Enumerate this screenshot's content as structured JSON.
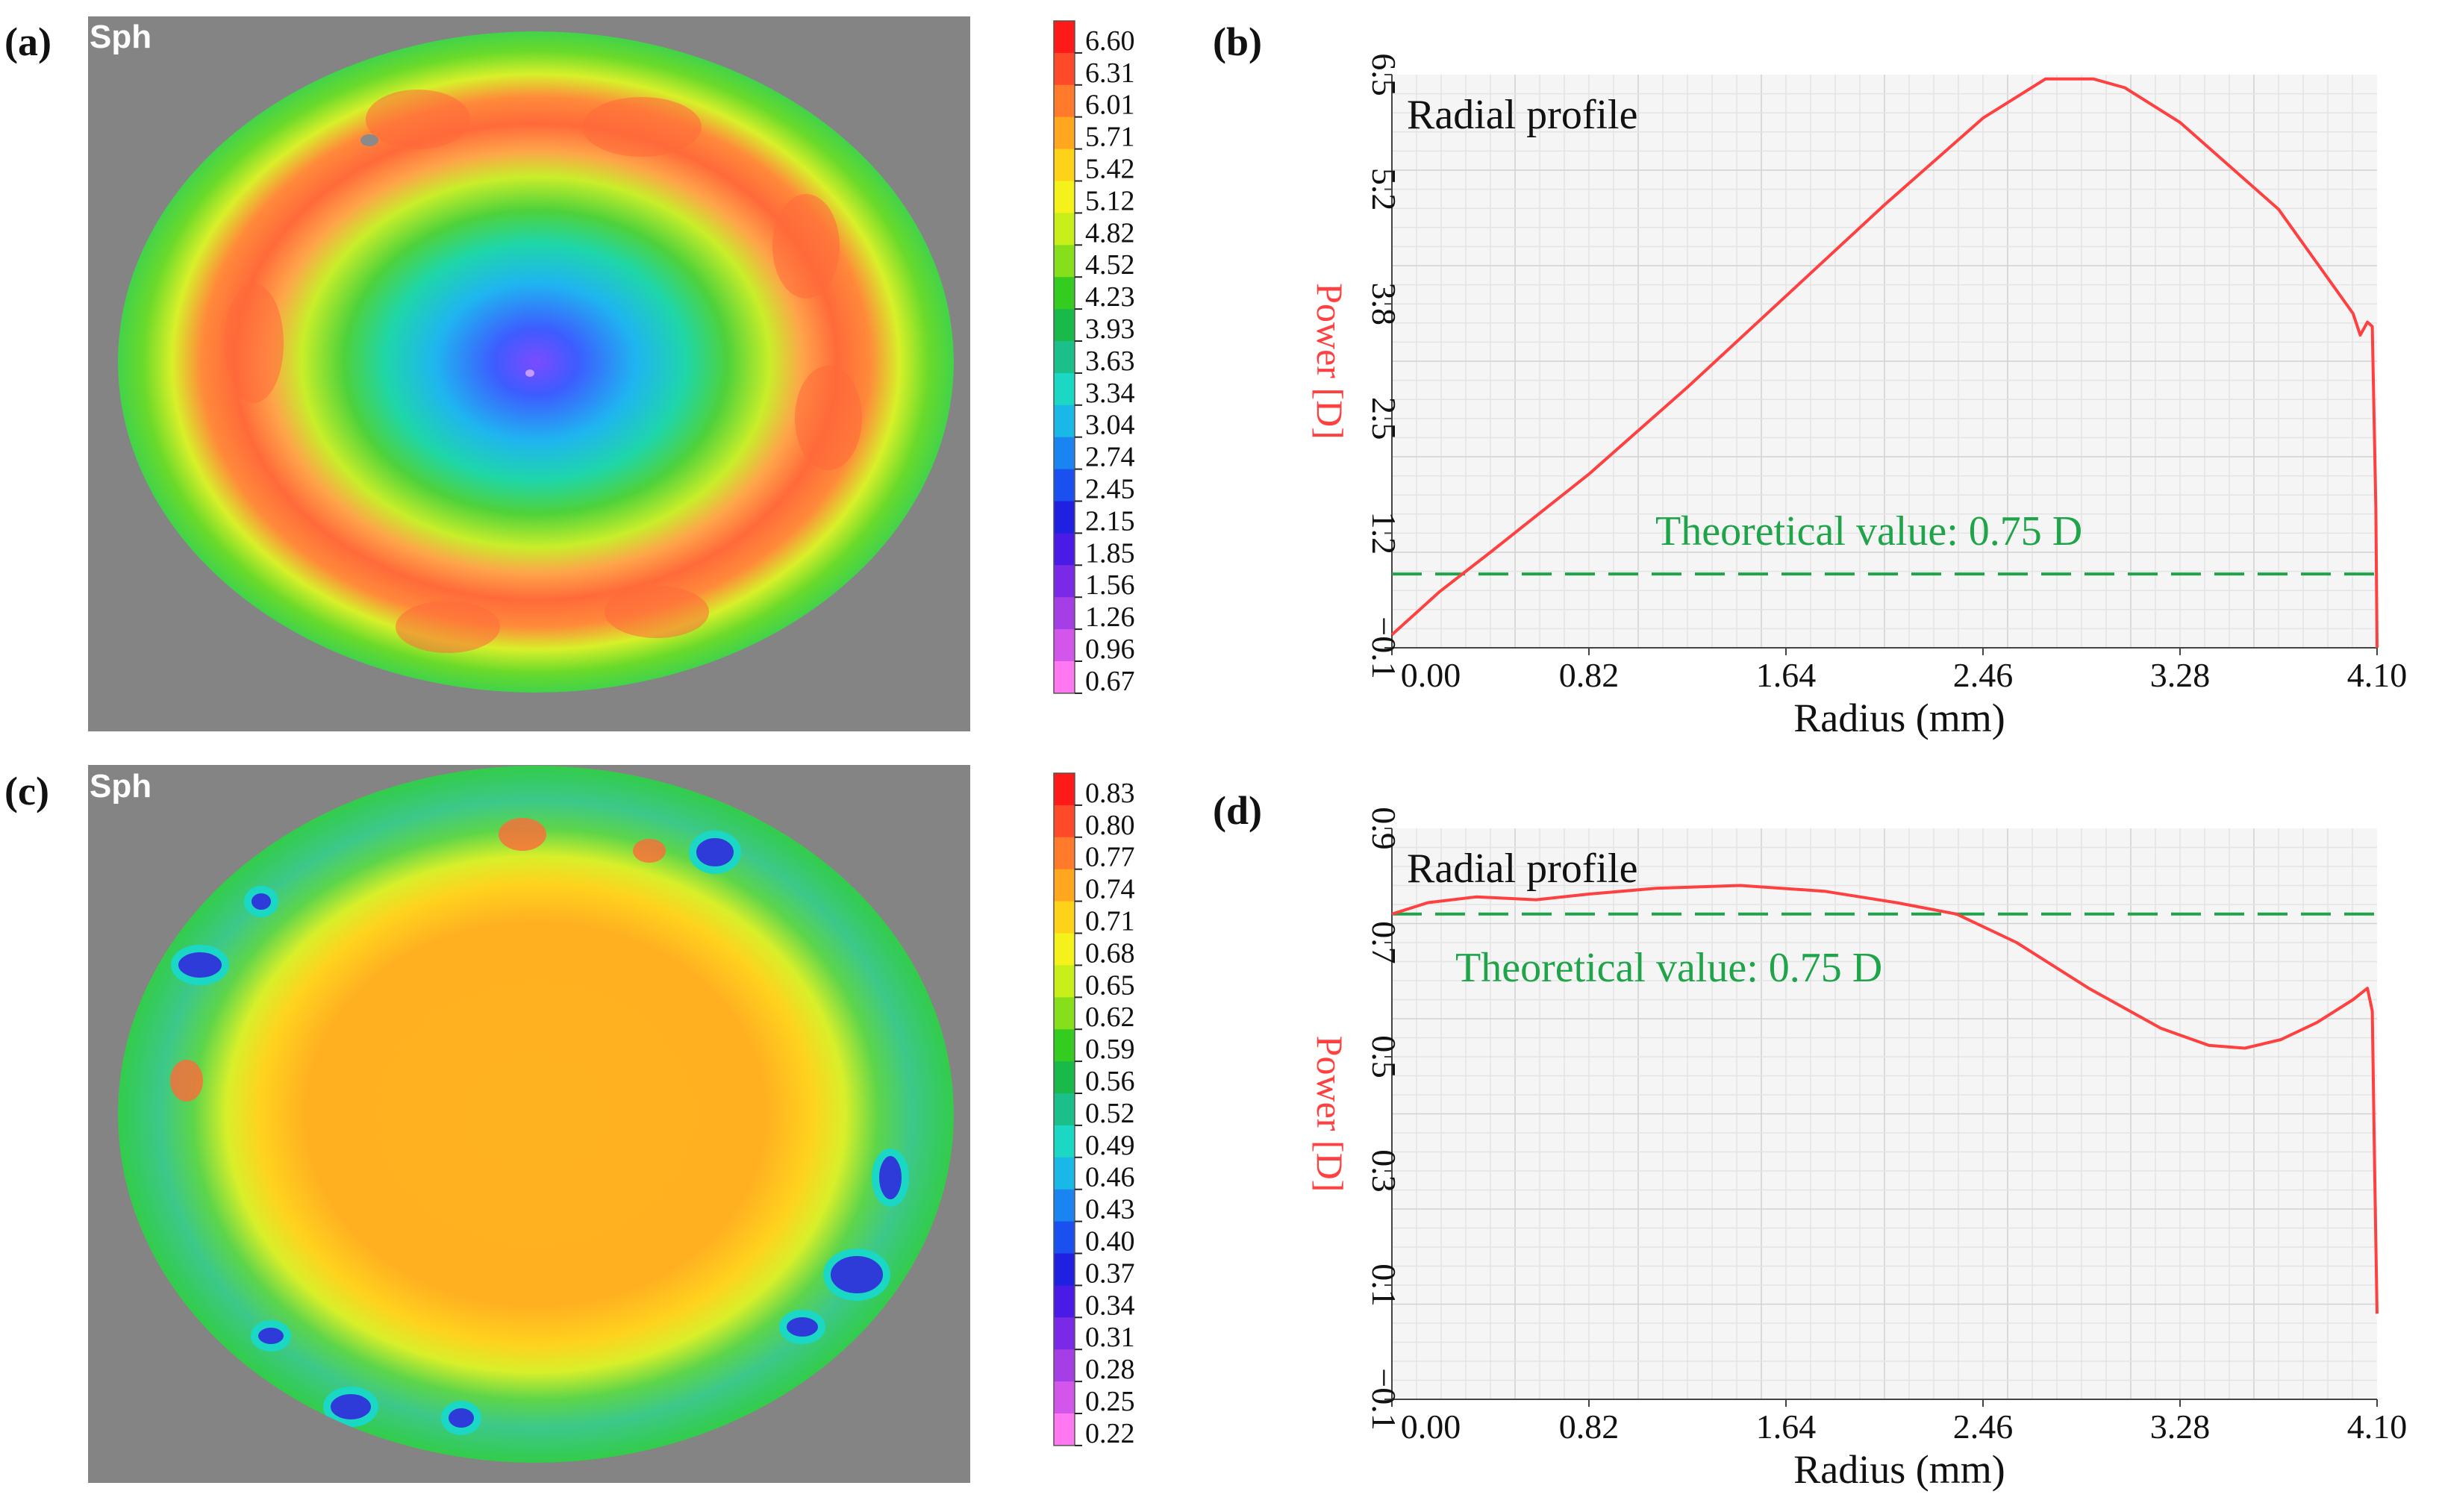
{
  "panels": {
    "a": {
      "label": "(a)",
      "map_title": "Sph"
    },
    "b": {
      "label": "(b)"
    },
    "c": {
      "label": "(c)",
      "map_title": "Sph"
    },
    "d": {
      "label": "(d)"
    }
  },
  "colorbars": {
    "a": [
      "6.60",
      "6.31",
      "6.01",
      "5.71",
      "5.42",
      "5.12",
      "4.82",
      "4.52",
      "4.23",
      "3.93",
      "3.63",
      "3.34",
      "3.04",
      "2.74",
      "2.45",
      "2.15",
      "1.85",
      "1.56",
      "1.26",
      "0.96",
      "0.67"
    ],
    "c": [
      "0.83",
      "0.80",
      "0.77",
      "0.74",
      "0.71",
      "0.68",
      "0.65",
      "0.62",
      "0.59",
      "0.56",
      "0.52",
      "0.49",
      "0.46",
      "0.43",
      "0.40",
      "0.37",
      "0.34",
      "0.31",
      "0.28",
      "0.25",
      "0.22"
    ],
    "colors": [
      "#ff1a1a",
      "#ff4a2a",
      "#ff7a2a",
      "#ffa81f",
      "#ffd21a",
      "#f4f21a",
      "#c8ef1a",
      "#86df1a",
      "#33cc1f",
      "#1aba4a",
      "#1abf8a",
      "#1ad8c4",
      "#1ab8e6",
      "#1a84f0",
      "#1a4ff0",
      "#2020e0",
      "#4a1ae6",
      "#7a2ae6",
      "#a63ee6",
      "#d256ea",
      "#ff78f2"
    ]
  },
  "chart_data": [
    {
      "id": "b",
      "type": "line",
      "title": "Radial profile",
      "xlabel": "Radius  (mm)",
      "ylabel": "Power [D]",
      "xlim": [
        0,
        4.1
      ],
      "ylim": [
        -0.1,
        6.5
      ],
      "x_ticks": [
        "0.00",
        "0.82",
        "1.64",
        "2.46",
        "3.28",
        "4.10"
      ],
      "y_ticks": [
        "−0.1",
        "1.2",
        "2.5",
        "3.8",
        "5.2",
        "6.5"
      ],
      "annotation": "Theoretical value: 0.75 D",
      "theoretical": 0.75,
      "series": [
        {
          "x": [
            0,
            0.2,
            0.41,
            0.82,
            1.23,
            1.64,
            2.05,
            2.46,
            2.72,
            2.92,
            3.05,
            3.28,
            3.69,
            4.0,
            4.03,
            4.06,
            4.08,
            4.095,
            4.1
          ],
          "y": [
            0.05,
            0.55,
            1.0,
            1.9,
            2.9,
            3.95,
            5.0,
            6.0,
            6.45,
            6.45,
            6.35,
            5.95,
            4.95,
            3.75,
            3.5,
            3.65,
            3.6,
            1.5,
            -0.1
          ],
          "color": "#ff4040"
        }
      ]
    },
    {
      "id": "d",
      "type": "line",
      "title": "Radial profile",
      "xlabel": "Radius  (mm)",
      "ylabel": "Power [D]",
      "xlim": [
        0,
        4.1
      ],
      "ylim": [
        -0.1,
        0.9
      ],
      "x_ticks": [
        "0.00",
        "0.82",
        "1.64",
        "2.46",
        "3.28",
        "4.10"
      ],
      "y_ticks": [
        "−0.1",
        "0.1",
        "0.3",
        "0.5",
        "0.7",
        "0.9"
      ],
      "annotation": "Theoretical value: 0.75 D",
      "theoretical": 0.75,
      "series": [
        {
          "x": [
            0,
            0.15,
            0.35,
            0.6,
            0.82,
            1.1,
            1.45,
            1.8,
            2.1,
            2.35,
            2.6,
            2.9,
            3.2,
            3.4,
            3.55,
            3.7,
            3.85,
            4.0,
            4.06,
            4.08,
            4.09,
            4.1
          ],
          "y": [
            0.75,
            0.77,
            0.78,
            0.775,
            0.785,
            0.795,
            0.8,
            0.79,
            0.77,
            0.75,
            0.7,
            0.62,
            0.55,
            0.52,
            0.515,
            0.53,
            0.56,
            0.6,
            0.62,
            0.58,
            0.3,
            0.05
          ],
          "color": "#ff4040"
        }
      ]
    }
  ]
}
